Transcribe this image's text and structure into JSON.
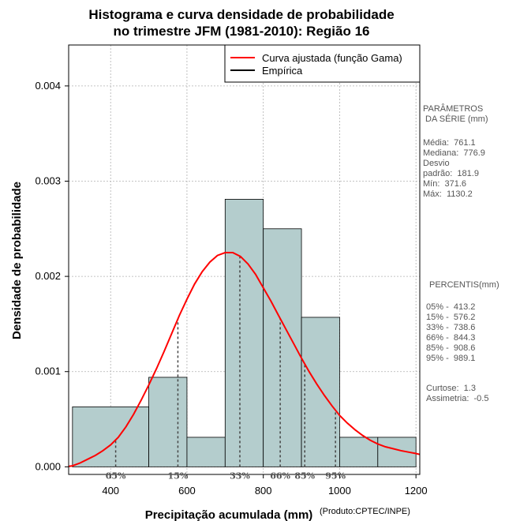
{
  "chart_data": {
    "type": "histogram",
    "title_lines": [
      "Histograma e curva densidade de probabilidade",
      "no trimestre JFM (1981-2010): Região 16"
    ],
    "xlabel": "Precipitação acumulada (mm)",
    "ylabel": "Densidade de probabilidade",
    "credit": "(Produto:CPTEC/INPE)",
    "xlim": [
      290,
      1210
    ],
    "ylim": [
      -8e-05,
      0.00443
    ],
    "x_ticks": [
      400,
      600,
      800,
      1000,
      1200
    ],
    "x_tick_labels": [
      "400",
      "600",
      "800",
      "1000",
      "1200"
    ],
    "y_ticks": [
      0,
      0.001,
      0.002,
      0.003,
      0.004
    ],
    "y_tick_labels": [
      "0.000",
      "0.001",
      "0.002",
      "0.003",
      "0.004"
    ],
    "grid": true,
    "bar_color": "#b4cdcd",
    "bins": [
      {
        "from": 300,
        "to": 500,
        "density": 0.00063
      },
      {
        "from": 500,
        "to": 600,
        "density": 0.00094
      },
      {
        "from": 600,
        "to": 700,
        "density": 0.00031
      },
      {
        "from": 700,
        "to": 800,
        "density": 0.00281
      },
      {
        "from": 800,
        "to": 900,
        "density": 0.0025
      },
      {
        "from": 900,
        "to": 1000,
        "density": 0.00157
      },
      {
        "from": 1000,
        "to": 1100,
        "density": 0.00031
      },
      {
        "from": 1100,
        "to": 1200,
        "density": 0.00031
      }
    ],
    "curve": {
      "name": "Curva ajustada (função Gama)",
      "color": "#ff0000",
      "x": [
        290,
        300,
        320,
        340,
        360,
        380,
        400,
        420,
        440,
        460,
        480,
        500,
        520,
        540,
        560,
        580,
        600,
        620,
        640,
        660,
        680,
        700,
        720,
        740,
        760,
        780,
        800,
        820,
        840,
        860,
        880,
        900,
        920,
        940,
        960,
        980,
        1000,
        1020,
        1040,
        1060,
        1080,
        1100,
        1120,
        1140,
        1160,
        1180,
        1200,
        1210
      ],
      "y": [
        5e-06,
        1e-05,
        4e-05,
        8e-05,
        0.00012,
        0.00017,
        0.00023,
        0.00031,
        0.00042,
        0.00055,
        0.0007,
        0.00086,
        0.00103,
        0.00121,
        0.0014,
        0.00159,
        0.00176,
        0.00192,
        0.00205,
        0.00215,
        0.00222,
        0.00225,
        0.00225,
        0.00221,
        0.00213,
        0.00202,
        0.00188,
        0.00174,
        0.00159,
        0.00144,
        0.00129,
        0.00114,
        0.001,
        0.00087,
        0.00075,
        0.00064,
        0.00054,
        0.00046,
        0.00039,
        0.00033,
        0.00028,
        0.00024,
        0.00021,
        0.00019,
        0.00017,
        0.000155,
        0.00014,
        0.00013
      ]
    },
    "empirical_legend": "Empírica",
    "percentile_markers": [
      {
        "label": "05%",
        "value": 413.2
      },
      {
        "label": "15%",
        "value": 576.2
      },
      {
        "label": "33%",
        "value": 738.6
      },
      {
        "label": "66%",
        "value": 844.3
      },
      {
        "label": "85%",
        "value": 908.6
      },
      {
        "label": "95%",
        "value": 989.1
      }
    ]
  },
  "side_panel": {
    "params_title": "PARÂMETROS\n DA SÉRIE (mm)",
    "params_body": "Média:  761.1\nMediana:  776.9\nDesvio\npadrão:  181.9\nMín:  371.6\nMáx:  1130.2",
    "percentis_title": "PERCENTIS(mm)",
    "percentis_body": "05% -  413.2\n15% -  576.2\n33% -  738.6\n66% -  844.3\n85% -  908.6\n95% -  989.1",
    "stats_body": "Curtose:  1.3\nAssimetria:  -0.5"
  },
  "colors": {
    "text_grey": "#555555",
    "curve": "#ff0000",
    "bars": "#b4cdcd"
  }
}
